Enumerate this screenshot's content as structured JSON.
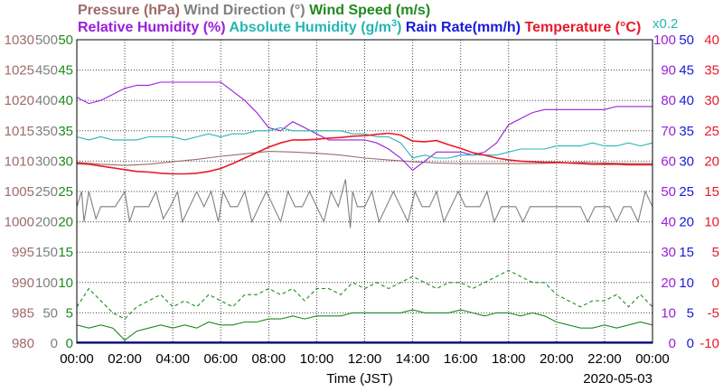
{
  "header": {
    "row1": [
      {
        "text": "Pressure (hPa)",
        "color": "#a06a6a"
      },
      {
        "text": "Wind Direction (°)",
        "color": "#7f7f7f"
      },
      {
        "text": "Wind Speed (m/s)",
        "color": "#1e8a1e"
      }
    ],
    "row2": [
      {
        "text": "Relative Humidity (%)",
        "color": "#9a1fd9"
      },
      {
        "text": "Absolute Humidity (g/m",
        "sup": "3",
        "tail": ")",
        "color": "#26b5b5"
      },
      {
        "text": "Rain Rate(mm/h)",
        "color": "#1a1adb"
      },
      {
        "text": "Temperature (°C)",
        "color": "#e81a2a"
      }
    ],
    "multiplier": {
      "text": "x0.2",
      "color": "#26b5b5"
    }
  },
  "footer": {
    "xlabel": "Time (JST)",
    "date": "2020-05-03"
  },
  "chart_data": {
    "type": "line",
    "title": "",
    "xlabel": "Time (JST)",
    "x_range": [
      "00:00",
      "24:00"
    ],
    "x_ticks": [
      "00:00",
      "02:00",
      "04:00",
      "06:00",
      "08:00",
      "10:00",
      "12:00",
      "14:00",
      "16:00",
      "18:00",
      "20:00",
      "22:00",
      "00:00"
    ],
    "grid": true,
    "axes": {
      "pressure": {
        "label": "Pressure (hPa)",
        "range": [
          980,
          1030
        ],
        "ticks": [
          "980",
          "985",
          "990",
          "995",
          "1000",
          "1005",
          "1010",
          "1015",
          "1020",
          "1025",
          "1030"
        ],
        "color": "#a06a6a"
      },
      "wind_direction": {
        "label": "Wind Direction (°)",
        "range": [
          0,
          500
        ],
        "ticks": [
          "0",
          "50",
          "100",
          "150",
          "200",
          "250",
          "300",
          "350",
          "400",
          "450",
          "500"
        ],
        "color": "#7f7f7f"
      },
      "wind_speed": {
        "label": "Wind Speed (m/s)",
        "range": [
          0,
          50
        ],
        "ticks": [
          "0",
          "5",
          "10",
          "15",
          "20",
          "25",
          "30",
          "35",
          "40",
          "45",
          "50"
        ],
        "color": "#1e8a1e"
      },
      "relative_humidity": {
        "label": "Relative Humidity (%)",
        "range": [
          0,
          100
        ],
        "ticks": [
          "0",
          "10",
          "20",
          "30",
          "40",
          "50",
          "60",
          "70",
          "80",
          "90",
          "100"
        ],
        "color": "#9a1fd9"
      },
      "rain_rate": {
        "label": "Rain Rate(mm/h)",
        "range": [
          0,
          50
        ],
        "ticks": [
          "0",
          "5",
          "10",
          "15",
          "20",
          "25",
          "30",
          "35",
          "40",
          "45",
          "50"
        ],
        "color": "#1a1adb"
      },
      "temperature": {
        "label": "Temperature (°C)",
        "range": [
          -10,
          40
        ],
        "ticks": [
          "-10",
          "-5",
          "0",
          "5",
          "10",
          "15",
          "20",
          "25",
          "30",
          "35",
          "40"
        ],
        "color": "#e81a2a"
      }
    },
    "series": [
      {
        "name": "Pressure (hPa)",
        "axis": "pressure",
        "color": "#a06a6a",
        "style": "solid",
        "x": [
          0,
          1,
          2,
          3,
          4,
          5,
          6,
          7,
          8,
          9,
          10,
          11,
          12,
          13,
          14,
          15,
          16,
          17,
          18,
          19,
          20,
          21,
          22,
          23,
          24
        ],
        "y": [
          1009.8,
          1009.5,
          1009.3,
          1009.5,
          1009.9,
          1010.3,
          1010.8,
          1011.2,
          1011.6,
          1011.5,
          1011.3,
          1011.0,
          1010.5,
          1010.2,
          1009.9,
          1009.7,
          1009.6,
          1009.6,
          1009.6,
          1009.6,
          1009.7,
          1009.8,
          1009.7,
          1009.6,
          1009.6
        ]
      },
      {
        "name": "Wind Direction (°)",
        "axis": "wind_direction",
        "color": "#7f7f7f",
        "style": "solid",
        "x": [
          0,
          0.2,
          0.3,
          0.5,
          0.8,
          1.0,
          1.3,
          1.6,
          2.0,
          2.2,
          2.4,
          2.6,
          3.0,
          3.3,
          3.6,
          3.9,
          4.2,
          4.4,
          4.7,
          5.0,
          5.3,
          5.6,
          5.9,
          6.1,
          6.4,
          6.7,
          7.0,
          7.3,
          7.6,
          7.9,
          8.2,
          8.5,
          8.8,
          9.1,
          9.4,
          9.7,
          10.0,
          10.3,
          10.6,
          10.9,
          11.2,
          11.4,
          11.5,
          11.7,
          12.0,
          12.3,
          12.6,
          12.9,
          13.2,
          13.5,
          13.8,
          14.1,
          14.4,
          14.7,
          15.0,
          15.3,
          15.6,
          15.9,
          16.2,
          16.5,
          16.8,
          17.1,
          17.4,
          17.7,
          18.0,
          18.3,
          18.6,
          18.9,
          19.2,
          19.5,
          19.8,
          20.1,
          20.4,
          20.7,
          21.0,
          21.3,
          21.6,
          21.9,
          22.2,
          22.5,
          22.8,
          23.1,
          23.4,
          23.7,
          24.0
        ],
        "y": [
          225,
          250,
          200,
          250,
          205,
          225,
          225,
          225,
          250,
          200,
          225,
          225,
          225,
          250,
          205,
          225,
          250,
          200,
          225,
          250,
          225,
          250,
          200,
          250,
          225,
          225,
          250,
          200,
          225,
          250,
          225,
          200,
          250,
          225,
          225,
          250,
          225,
          200,
          250,
          225,
          270,
          190,
          250,
          225,
          225,
          250,
          200,
          225,
          250,
          225,
          200,
          250,
          225,
          225,
          250,
          200,
          225,
          250,
          225,
          225,
          225,
          250,
          200,
          225,
          225,
          225,
          200,
          225,
          225,
          225,
          225,
          225,
          225,
          225,
          225,
          200,
          225,
          225,
          225,
          200,
          225,
          225,
          200,
          250,
          225
        ]
      },
      {
        "name": "Wind Speed (m/s) max",
        "axis": "wind_speed",
        "color": "#1e8a1e",
        "style": "dashed",
        "x": [
          0,
          0.5,
          1,
          1.5,
          2,
          2.5,
          3,
          3.5,
          4,
          4.5,
          5,
          5.5,
          6,
          6.5,
          7,
          7.5,
          8,
          8.5,
          9,
          9.5,
          10,
          10.5,
          11,
          11.5,
          12,
          12.5,
          13,
          13.5,
          14,
          14.5,
          15,
          15.5,
          16,
          16.5,
          17,
          17.5,
          18,
          18.5,
          19,
          19.5,
          20,
          20.5,
          21,
          21.5,
          22,
          22.5,
          23,
          23.5,
          24
        ],
        "y": [
          6,
          9,
          7,
          5,
          4,
          6,
          7,
          8,
          6,
          7,
          6,
          8,
          7,
          6,
          8,
          8,
          9,
          8,
          9,
          7,
          9,
          9,
          8,
          10,
          9,
          10,
          9,
          10,
          11,
          10,
          9,
          10,
          10,
          9,
          10,
          11,
          12,
          11,
          10,
          10,
          8,
          7,
          6,
          7,
          7,
          8,
          6,
          8,
          6
        ]
      },
      {
        "name": "Wind Speed (m/s) mean",
        "axis": "wind_speed",
        "color": "#1e8a1e",
        "style": "solid",
        "x": [
          0,
          0.5,
          1,
          1.5,
          2,
          2.5,
          3,
          3.5,
          4,
          4.5,
          5,
          5.5,
          6,
          6.5,
          7,
          7.5,
          8,
          8.5,
          9,
          9.5,
          10,
          10.5,
          11,
          11.5,
          12,
          12.5,
          13,
          13.5,
          14,
          14.5,
          15,
          15.5,
          16,
          16.5,
          17,
          17.5,
          18,
          18.5,
          19,
          19.5,
          20,
          20.5,
          21,
          21.5,
          22,
          22.5,
          23,
          23.5,
          24
        ],
        "y": [
          3,
          2.5,
          3,
          2.5,
          0.5,
          2,
          2.5,
          3,
          2.5,
          3,
          2.5,
          3.5,
          3,
          3,
          3.5,
          3.5,
          4,
          4,
          4.5,
          4,
          4.5,
          4.5,
          4.5,
          5,
          5,
          5,
          5,
          5,
          5.5,
          5,
          5,
          5,
          5.5,
          5,
          4.5,
          5,
          5,
          4.5,
          5,
          4.5,
          3.5,
          3,
          2.5,
          2.5,
          3,
          2.5,
          3,
          3.5,
          3
        ]
      },
      {
        "name": "Relative Humidity (%)",
        "axis": "relative_humidity",
        "color": "#9a1fd9",
        "style": "solid",
        "x": [
          0,
          0.5,
          1,
          1.5,
          2,
          2.5,
          3,
          3.5,
          4,
          4.5,
          5,
          5.5,
          6,
          6.5,
          7,
          7.5,
          8,
          8.5,
          9,
          9.5,
          10,
          10.5,
          11,
          11.5,
          12,
          12.5,
          13,
          13.5,
          14,
          14.5,
          15,
          15.5,
          16,
          16.5,
          17,
          17.5,
          18,
          18.5,
          19,
          19.5,
          20,
          20.5,
          21,
          21.5,
          22,
          22.5,
          23,
          23.5,
          24
        ],
        "y": [
          81,
          79,
          80,
          82,
          84,
          85,
          85,
          86,
          86,
          86,
          86,
          86,
          86,
          83,
          80,
          76,
          71,
          70,
          73,
          71,
          69,
          67,
          67,
          67,
          67,
          66,
          64,
          61,
          57,
          60,
          63,
          63,
          63,
          62,
          63,
          66,
          72,
          74,
          76,
          77,
          77,
          77,
          77,
          77,
          77,
          78,
          78,
          78,
          78
        ]
      },
      {
        "name": "Absolute Humidity (g/m3)",
        "axis": "relative_humidity",
        "color": "#26b5b5",
        "style": "solid",
        "x": [
          0,
          0.5,
          1,
          1.5,
          2,
          2.5,
          3,
          3.5,
          4,
          4.5,
          5,
          5.5,
          6,
          6.5,
          7,
          7.5,
          8,
          8.5,
          9,
          9.5,
          10,
          10.5,
          11,
          11.5,
          12,
          12.5,
          13,
          13.5,
          14,
          14.5,
          15,
          15.5,
          16,
          16.5,
          17,
          17.5,
          18,
          18.5,
          19,
          19.5,
          20,
          20.5,
          21,
          21.5,
          22,
          22.5,
          23,
          23.5,
          24
        ],
        "y": [
          68,
          67,
          68,
          67,
          67,
          67,
          68,
          68,
          68,
          67,
          68,
          69,
          68,
          69,
          69,
          70,
          70,
          71,
          70,
          70,
          70,
          70,
          70,
          69,
          69,
          68,
          68,
          66,
          61,
          62,
          61,
          61,
          62,
          62,
          62,
          62,
          63,
          64,
          64,
          64,
          65,
          65,
          65,
          66,
          65,
          65,
          66,
          65,
          66
        ]
      },
      {
        "name": "Temperature (°C)",
        "axis": "temperature",
        "color": "#e81a2a",
        "style": "solid",
        "x": [
          0,
          0.5,
          1,
          1.5,
          2,
          2.5,
          3,
          3.5,
          4,
          4.5,
          5,
          5.5,
          6,
          6.5,
          7,
          7.5,
          8,
          8.5,
          9,
          9.5,
          10,
          10.5,
          11,
          11.5,
          12,
          12.5,
          13,
          13.5,
          14,
          14.5,
          15,
          15.5,
          16,
          16.5,
          17,
          17.5,
          18,
          18.5,
          19,
          19.5,
          20,
          20.5,
          21,
          21.5,
          22,
          22.5,
          23,
          23.5,
          24
        ],
        "y": [
          19.6,
          19.5,
          19.2,
          18.9,
          18.6,
          18.3,
          18.2,
          18.0,
          17.9,
          17.9,
          18.0,
          18.3,
          18.8,
          19.6,
          20.5,
          21.4,
          22.3,
          23.0,
          23.5,
          23.5,
          23.6,
          23.8,
          23.9,
          24.1,
          24.2,
          24.4,
          24.6,
          24.3,
          23.3,
          23.2,
          23.4,
          22.7,
          22.1,
          21.4,
          21.0,
          20.5,
          20.2,
          20.0,
          19.9,
          19.8,
          19.8,
          19.7,
          19.6,
          19.5,
          19.5,
          19.5,
          19.4,
          19.4,
          19.4
        ]
      }
    ]
  }
}
